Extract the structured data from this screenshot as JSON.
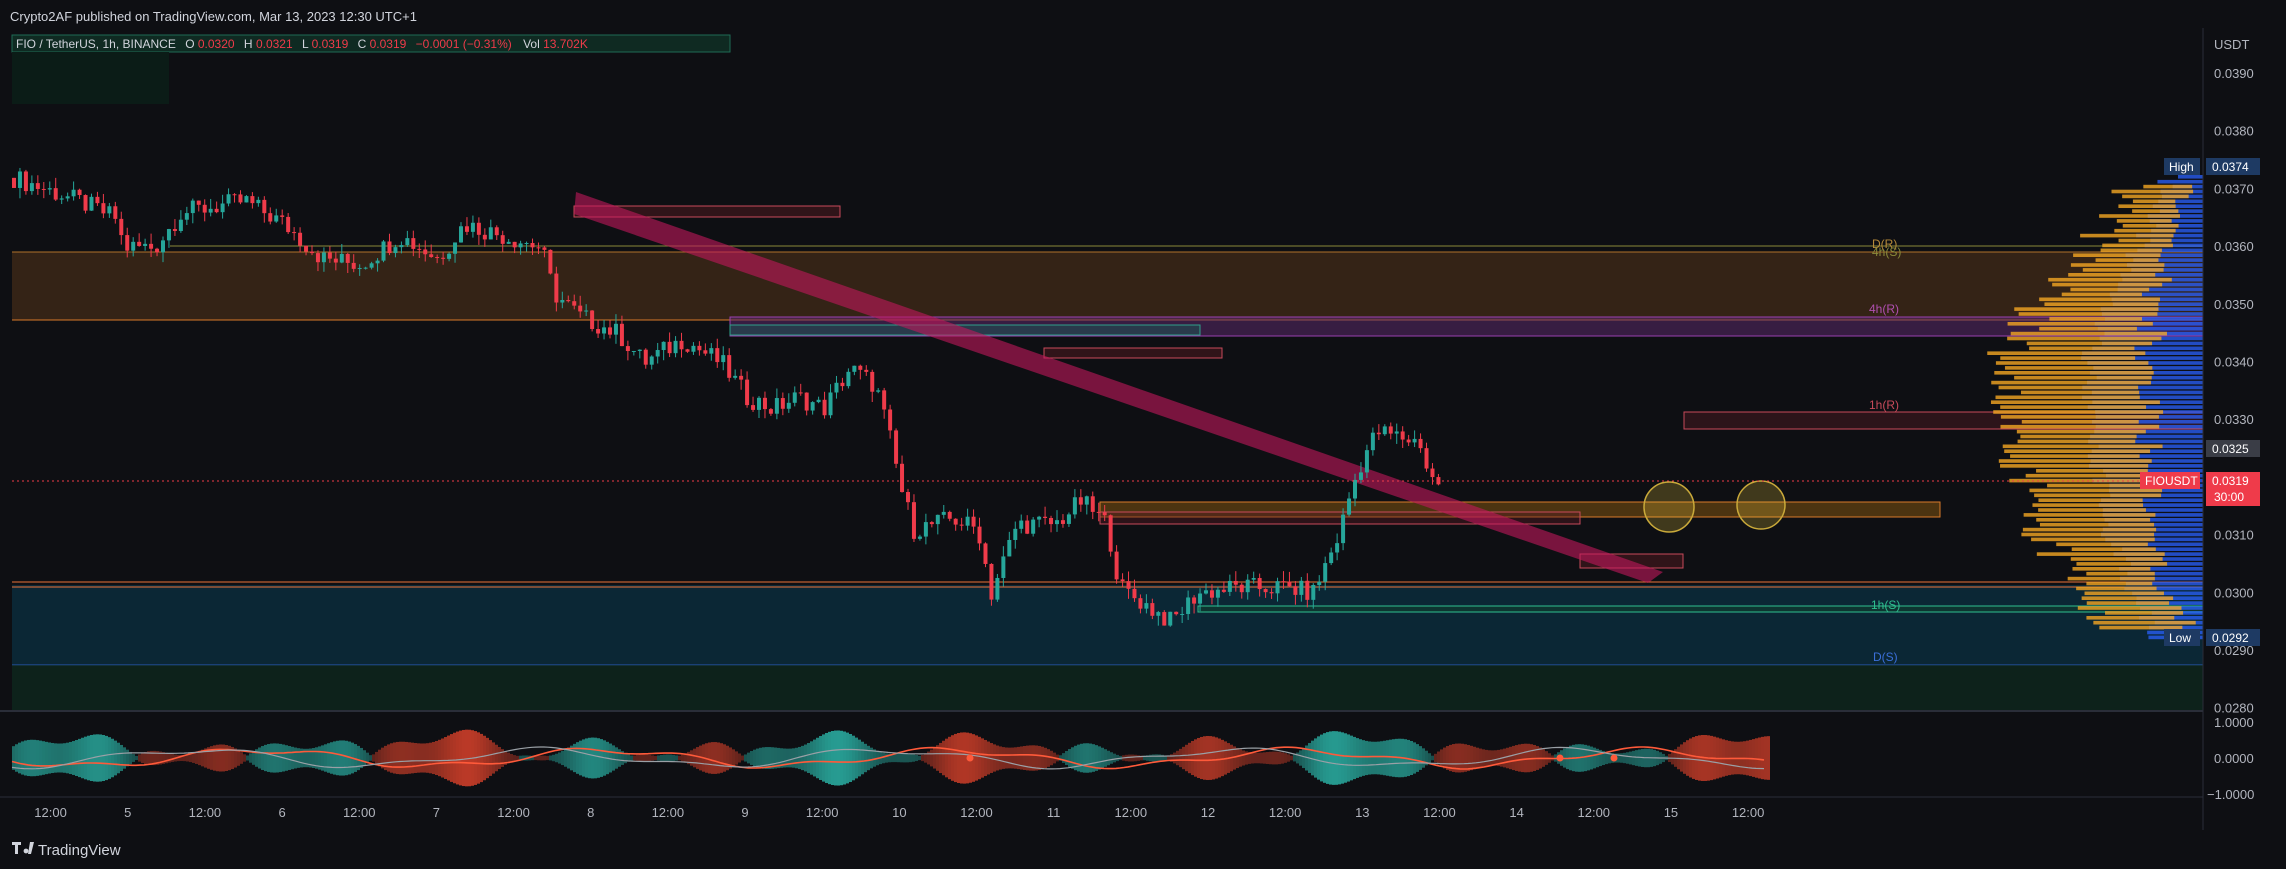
{
  "header": {
    "published": "Crypto2AF published on TradingView.com, Mar 13, 2023 12:30 UTC+1"
  },
  "legend": {
    "symbol": "FIO / TetherUS, 1h, BINANCE",
    "o_label": "O",
    "o_value": "0.0320",
    "h_label": "H",
    "h_value": "0.0321",
    "l_label": "L",
    "l_value": "0.0319",
    "c_label": "C",
    "c_value": "0.0319",
    "change": "−0.0001 (−0.31%)",
    "vol_label": "Vol",
    "vol_value": "13.702K"
  },
  "price_axis": {
    "currency": "USDT",
    "high_label": "High",
    "high_value": "0.0374",
    "low_label": "Low",
    "low_value": "0.0292",
    "marker_value": "0.0325",
    "symbol_tag": "FIOUSDT",
    "last_value": "0.0319",
    "countdown": "30:00"
  },
  "osc_axis": [
    "1.0000",
    "0.0000",
    "−1.0000"
  ],
  "zone_labels": {
    "d_r": "D(R)",
    "h4_s": "4h(S)",
    "h4_r": "4h(R)",
    "h1_r": "1h(R)",
    "h1_s": "1h(S)",
    "d_s": "D(S)"
  },
  "footer": {
    "brand": "TradingView"
  },
  "colors": {
    "up": "#26a69a",
    "down": "#ef3b4a",
    "accent": "#e91e63",
    "volume_profile_up": "#2962ff",
    "volume_profile_down": "#f5a623"
  },
  "chart_data": {
    "type": "candlestick",
    "symbol": "FIOUSDT",
    "interval": "1h",
    "exchange": "BINANCE",
    "y_range": [
      0.028,
      0.0398
    ],
    "yticks": [
      "0.0390",
      "0.0380",
      "0.0370",
      "0.0360",
      "0.0350",
      "0.0340",
      "0.0330",
      "0.0320",
      "0.0310",
      "0.0300",
      "0.0290",
      "0.0280"
    ],
    "x_range_hours": [
      0,
      178
    ],
    "xticks": [
      {
        "h": 6,
        "label": "12:00"
      },
      {
        "h": 18,
        "label": "5"
      },
      {
        "h": 30,
        "label": "12:00"
      },
      {
        "h": 42,
        "label": "6"
      },
      {
        "h": 54,
        "label": "12:00"
      },
      {
        "h": 66,
        "label": "7"
      },
      {
        "h": 78,
        "label": "12:00"
      },
      {
        "h": 90,
        "label": "8"
      },
      {
        "h": 102,
        "label": "12:00"
      },
      {
        "h": 114,
        "label": "9"
      },
      {
        "h": 126,
        "label": "12:00"
      },
      {
        "h": 138,
        "label": "10"
      },
      {
        "h": 150,
        "label": "12:00"
      },
      {
        "h": 162,
        "label": "11"
      },
      {
        "h": 174,
        "label": "12:00"
      },
      {
        "h": 186,
        "label": "12"
      },
      {
        "h": 198,
        "label": "12:00"
      },
      {
        "h": 210,
        "label": "13"
      },
      {
        "h": 222,
        "label": "12:00"
      },
      {
        "h": 234,
        "label": "14"
      },
      {
        "h": 246,
        "label": "12:00"
      },
      {
        "h": 258,
        "label": "15"
      },
      {
        "h": 270,
        "label": "12:00"
      }
    ],
    "price_path": [
      [
        0,
        0.0372
      ],
      [
        10,
        0.0368
      ],
      [
        16,
        0.0365
      ],
      [
        17,
        0.036
      ],
      [
        22,
        0.036
      ],
      [
        26,
        0.0366
      ],
      [
        36,
        0.0368
      ],
      [
        42,
        0.0364
      ],
      [
        48,
        0.0358
      ],
      [
        54,
        0.0357
      ],
      [
        60,
        0.0362
      ],
      [
        66,
        0.0358
      ],
      [
        70,
        0.0364
      ],
      [
        76,
        0.0362
      ],
      [
        82,
        0.036
      ],
      [
        84,
        0.0352
      ],
      [
        88,
        0.0348
      ],
      [
        94,
        0.0345
      ],
      [
        98,
        0.034
      ],
      [
        104,
        0.0344
      ],
      [
        110,
        0.034
      ],
      [
        114,
        0.0334
      ],
      [
        118,
        0.0332
      ],
      [
        122,
        0.0334
      ],
      [
        126,
        0.0332
      ],
      [
        130,
        0.0339
      ],
      [
        134,
        0.0336
      ],
      [
        136,
        0.0328
      ],
      [
        138,
        0.0318
      ],
      [
        140,
        0.0311
      ],
      [
        146,
        0.0313
      ],
      [
        150,
        0.0311
      ],
      [
        152,
        0.03
      ],
      [
        156,
        0.0312
      ],
      [
        162,
        0.0312
      ],
      [
        166,
        0.0316
      ],
      [
        170,
        0.0312
      ],
      [
        172,
        0.0301
      ],
      [
        176,
        0.0298
      ],
      [
        180,
        0.0295
      ],
      [
        184,
        0.03
      ],
      [
        190,
        0.0301
      ],
      [
        198,
        0.0301
      ],
      [
        202,
        0.03
      ],
      [
        206,
        0.031
      ],
      [
        208,
        0.0318
      ],
      [
        210,
        0.0324
      ],
      [
        212,
        0.0328
      ],
      [
        216,
        0.0327
      ],
      [
        219,
        0.0326
      ],
      [
        220,
        0.032
      ],
      [
        222,
        0.0319
      ]
    ],
    "zones": [
      {
        "label": "D(R)",
        "from": 0.0347,
        "to": 0.0359
      },
      {
        "label": "4h(R)",
        "from": 0.0344,
        "to": 0.0348
      },
      {
        "label": "1h(R)",
        "from": 0.0326,
        "to": 0.0329
      },
      {
        "label": "1h(S)",
        "from": 0.0296,
        "to": 0.0297
      },
      {
        "label": "D(S)",
        "from": 0.0287,
        "to": 0.03
      }
    ],
    "high": 0.0374,
    "low": 0.0292,
    "last": 0.0319
  }
}
